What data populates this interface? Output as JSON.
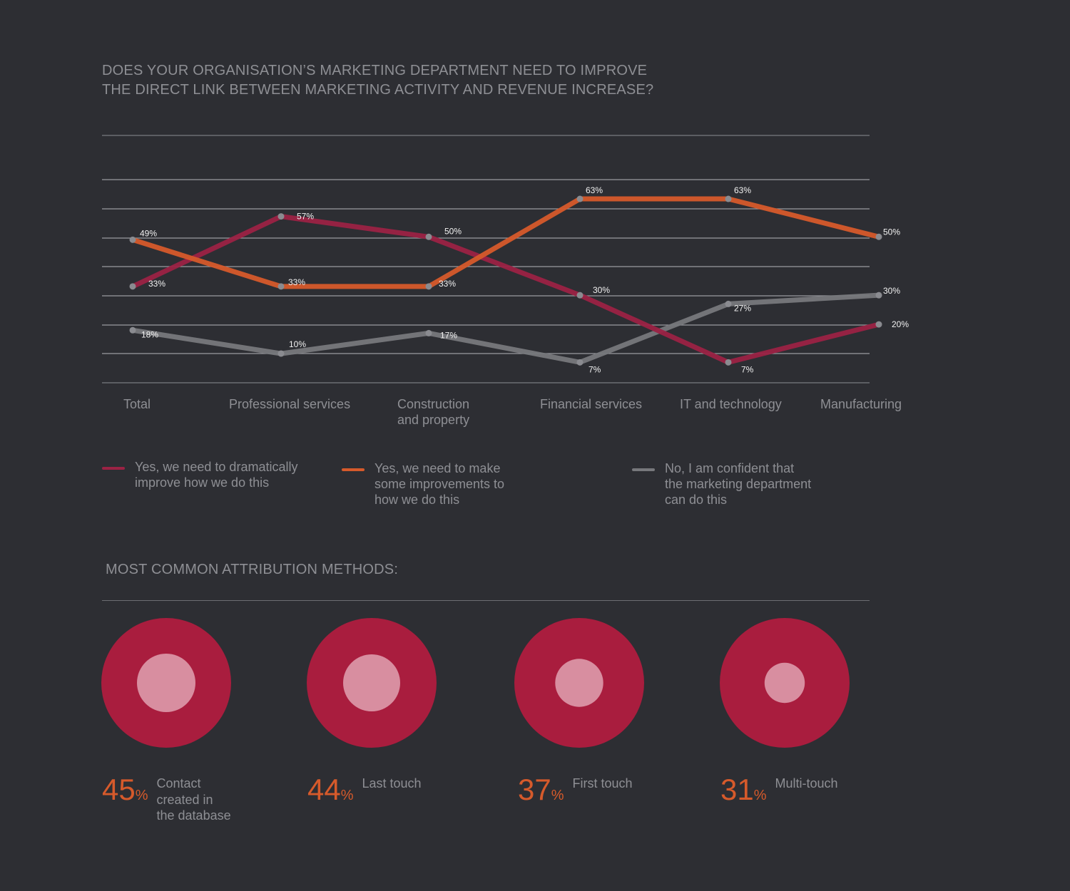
{
  "title": "DOES YOUR ORGANISATION’S MARKETING DEPARTMENT NEED TO IMPROVE THE DIRECT LINK BETWEEN MARKETING ACTIVITY AND REVENUE INCREASE?",
  "chart_data": [
    {
      "type": "line",
      "title": "DOES YOUR ORGANISATION’S MARKETING DEPARTMENT NEED TO IMPROVE THE DIRECT LINK BETWEEN MARKETING ACTIVITY AND REVENUE INCREASE?",
      "categories": [
        "Total",
        "Professional services",
        "Construction\nand property",
        "Financial services",
        "IT and technology",
        "Manufacturing"
      ],
      "series": [
        {
          "name": "Yes, we need to dramatically\nimprove how we do this",
          "color": "#9b2244",
          "values": [
            33,
            57,
            50,
            30,
            7,
            20
          ]
        },
        {
          "name": "Yes, we need to make\nsome improvements to\nhow we do this",
          "color": "#d65a2b",
          "values": [
            49,
            33,
            33,
            63,
            63,
            50
          ]
        },
        {
          "name": "No, I am confident that\nthe marketing department\ncan do this",
          "color": "#77787c",
          "values": [
            18,
            10,
            17,
            7,
            27,
            30
          ]
        }
      ],
      "data_labels": [
        [
          "33%",
          "57%",
          "50%",
          "30%",
          "7%",
          "20%"
        ],
        [
          "49%",
          "33%",
          "33%",
          "63%",
          "63%",
          "50%"
        ],
        [
          "18%",
          "10%",
          "17%",
          "7%",
          "27%",
          "30%"
        ]
      ],
      "legend_position": "bottom",
      "grid": true
    },
    {
      "type": "pie",
      "title": "MOST COMMON ATTRIBUTION METHODS:",
      "categories": [
        "Contact\ncreated in\nthe database",
        "Last touch",
        "First touch",
        "Multi-touch"
      ],
      "values": [
        45,
        44,
        37,
        31
      ],
      "ring_color": "#a91d3e",
      "inner_color": "#d88ea0"
    }
  ],
  "legend": [
    {
      "label": "Yes, we need to dramatically\nimprove how we do this",
      "color": "#9b2244"
    },
    {
      "label": "Yes, we need to make\nsome improvements to\nhow we do this",
      "color": "#d65a2b"
    },
    {
      "label": "No, I am confident that\nthe marketing department\ncan do this",
      "color": "#77787c"
    }
  ],
  "attribution": {
    "title": "MOST COMMON ATTRIBUTION METHODS:",
    "pct_symbol": "%",
    "items": [
      {
        "value": "45",
        "label": "Contact\ncreated in\nthe database"
      },
      {
        "value": "44",
        "label": "Last touch"
      },
      {
        "value": "37",
        "label": "First touch"
      },
      {
        "value": "31",
        "label": "Multi-touch"
      }
    ]
  }
}
